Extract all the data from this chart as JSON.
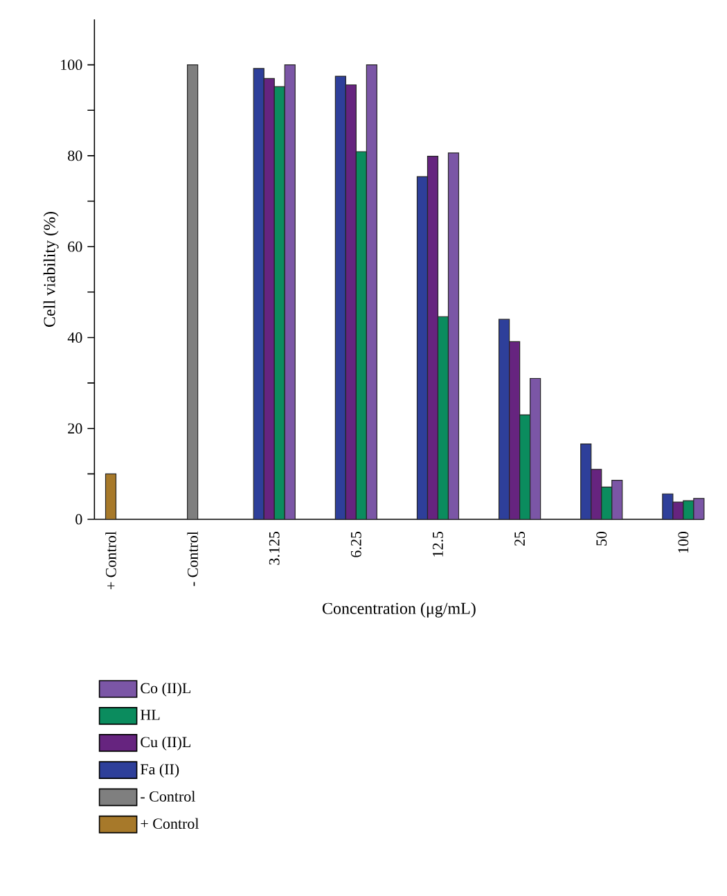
{
  "chart_data": {
    "type": "bar",
    "xlabel": "Concentration (μg/mL)",
    "ylabel": "Cell viability (%)",
    "categories": [
      "+ Control",
      "- Control",
      "3.125",
      "6.25",
      "12.5",
      "25",
      "50",
      "100"
    ],
    "series": [
      {
        "name": "+ Control",
        "color": "#a7792a",
        "values": [
          10,
          null,
          null,
          null,
          null,
          null,
          null,
          null
        ]
      },
      {
        "name": "- Control",
        "color": "#7f7f7f",
        "values": [
          null,
          100,
          null,
          null,
          null,
          null,
          null,
          null
        ]
      },
      {
        "name": "Fa (II)",
        "color": "#2e3f9a",
        "values": [
          null,
          null,
          99.2,
          97.5,
          75.4,
          44.0,
          16.6,
          5.6
        ]
      },
      {
        "name": "Cu (II)L",
        "color": "#66247f",
        "values": [
          null,
          null,
          97.0,
          95.6,
          79.9,
          39.1,
          11.0,
          3.8
        ]
      },
      {
        "name": "HL",
        "color": "#0b8c5e",
        "values": [
          null,
          null,
          95.2,
          80.9,
          44.6,
          23.0,
          7.1,
          4.1
        ]
      },
      {
        "name": "Co (II)L",
        "color": "#7b56a6",
        "values": [
          null,
          null,
          100,
          100,
          80.6,
          31.0,
          8.6,
          4.6
        ]
      }
    ],
    "ylim": [
      0,
      110
    ],
    "yticks": [
      0,
      {
        "value": 10,
        "label": null
      },
      20,
      {
        "value": 30,
        "label": null
      },
      40,
      {
        "value": 50,
        "label": null
      },
      60,
      {
        "value": 70,
        "label": null
      },
      80,
      {
        "value": 90,
        "label": null
      },
      100
    ],
    "legend": "bottom"
  }
}
